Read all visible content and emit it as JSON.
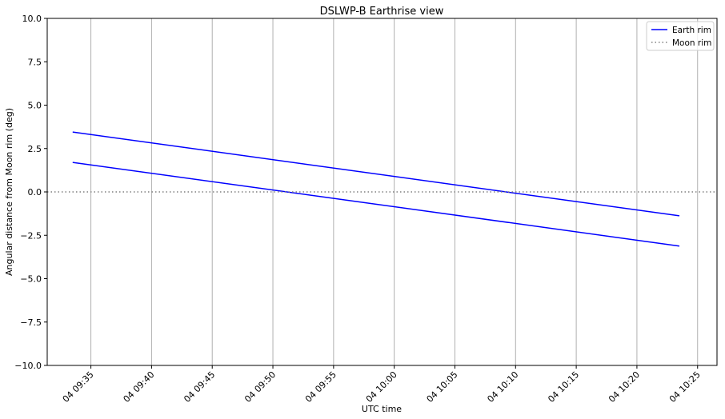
{
  "chart_data": {
    "type": "line",
    "title": "DSLWP-B Earthrise view",
    "xlabel": "UTC time",
    "ylabel": "Angular distance from Moon rim (deg)",
    "xlim_minutes_of_day": [
      571.4,
      626.6
    ],
    "ylim": [
      -10,
      10
    ],
    "x_ticks": [
      {
        "label": "04 09:35",
        "value": 575
      },
      {
        "label": "04 09:40",
        "value": 580
      },
      {
        "label": "04 09:45",
        "value": 585
      },
      {
        "label": "04 09:50",
        "value": 590
      },
      {
        "label": "04 09:55",
        "value": 595
      },
      {
        "label": "04 10:00",
        "value": 600
      },
      {
        "label": "04 10:05",
        "value": 605
      },
      {
        "label": "04 10:10",
        "value": 610
      },
      {
        "label": "04 10:15",
        "value": 615
      },
      {
        "label": "04 10:20",
        "value": 620
      },
      {
        "label": "04 10:25",
        "value": 625
      }
    ],
    "y_ticks": [
      {
        "label": "10.0",
        "value": 10
      },
      {
        "label": "7.5",
        "value": 7.5
      },
      {
        "label": "5.0",
        "value": 5
      },
      {
        "label": "2.5",
        "value": 2.5
      },
      {
        "label": "0.0",
        "value": 0
      },
      {
        "label": "−2.5",
        "value": -2.5
      },
      {
        "label": "−5.0",
        "value": -5
      },
      {
        "label": "−7.5",
        "value": -7.5
      },
      {
        "label": "−10.0",
        "value": -10
      }
    ],
    "grid": "vertical",
    "legend_position": "top-right",
    "series": [
      {
        "name": "Earth rim",
        "color": "#0000ff",
        "style": "solid",
        "points": [
          [
            573.5,
            3.45
          ],
          [
            623.5,
            -1.38
          ]
        ]
      },
      {
        "name": "",
        "color": "#0000ff",
        "style": "solid",
        "points": [
          [
            573.5,
            1.7
          ],
          [
            623.5,
            -3.12
          ]
        ]
      },
      {
        "name": "Moon rim",
        "color": "#808080",
        "style": "dotted",
        "points": [
          [
            571.4,
            0
          ],
          [
            626.6,
            0
          ]
        ]
      }
    ],
    "legend": [
      {
        "label": "Earth rim",
        "color": "#0000ff",
        "style": "solid"
      },
      {
        "label": "Moon rim",
        "color": "#808080",
        "style": "dotted"
      }
    ]
  }
}
